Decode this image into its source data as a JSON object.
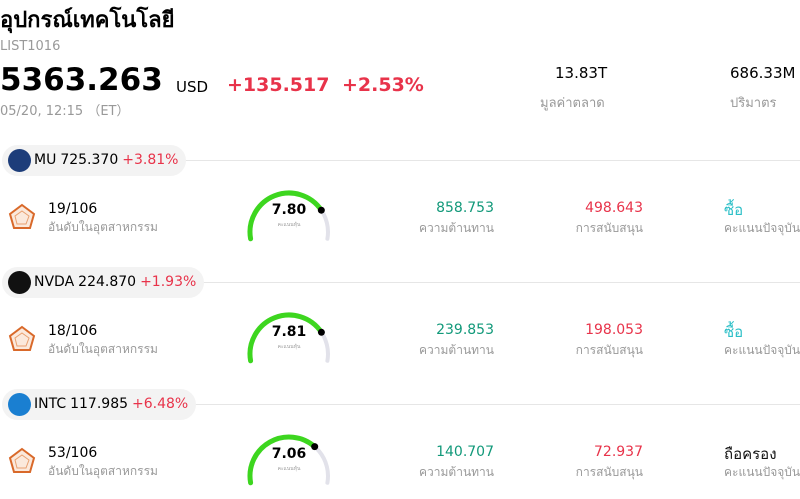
{
  "header": {
    "title": "อุปกรณ์เทคโนโลยี",
    "code": "LIST1016",
    "price": "5363.263",
    "currency": "USD",
    "change": "+135.517",
    "change_pct": "+2.53%",
    "time": "05/20, 12:15 （ET）",
    "stats": [
      {
        "value": "13.83T",
        "label": "มูลค่าตลาด"
      },
      {
        "value": "686.33M",
        "label": "ปริมาตร"
      }
    ]
  },
  "stocks": [
    {
      "ticker": "MU",
      "price": "725.370",
      "change_pct": "+3.81%",
      "logo_color": "#1d3d7a",
      "rank": "19/106",
      "rank_label": "อันดับในอุตสาหกรรม",
      "score": 7.8,
      "score_text": "7.80",
      "score_label": "คะแนนหุ้น",
      "resistance": "858.753",
      "resistance_label": "ความต้านทาน",
      "support": "498.643",
      "support_label": "การสนับสนุน",
      "rating": "ซื้อ",
      "rating_color": "#2bbfc7",
      "rating_label": "คะแนนปัจจุบัน"
    },
    {
      "ticker": "NVDA",
      "price": "224.870",
      "change_pct": "+1.93%",
      "logo_color": "#111111",
      "rank": "18/106",
      "rank_label": "อันดับในอุตสาหกรรม",
      "score": 7.81,
      "score_text": "7.81",
      "score_label": "คะแนนหุ้น",
      "resistance": "239.853",
      "resistance_label": "ความต้านทาน",
      "support": "198.053",
      "support_label": "การสนับสนุน",
      "rating": "ซื้อ",
      "rating_color": "#2bbfc7",
      "rating_label": "คะแนนปัจจุบัน"
    },
    {
      "ticker": "INTC",
      "price": "117.985",
      "change_pct": "+6.48%",
      "logo_color": "#1a7fd1",
      "rank": "53/106",
      "rank_label": "อันดับในอุตสาหกรรม",
      "score": 7.06,
      "score_text": "7.06",
      "score_label": "คะแนนหุ้น",
      "resistance": "140.707",
      "resistance_label": "ความต้านทาน",
      "support": "72.937",
      "support_label": "การสนับสนุน",
      "rating": "ถือครอง",
      "rating_color": "#111111",
      "rating_label": "คะแนนปัจจุบัน"
    }
  ]
}
